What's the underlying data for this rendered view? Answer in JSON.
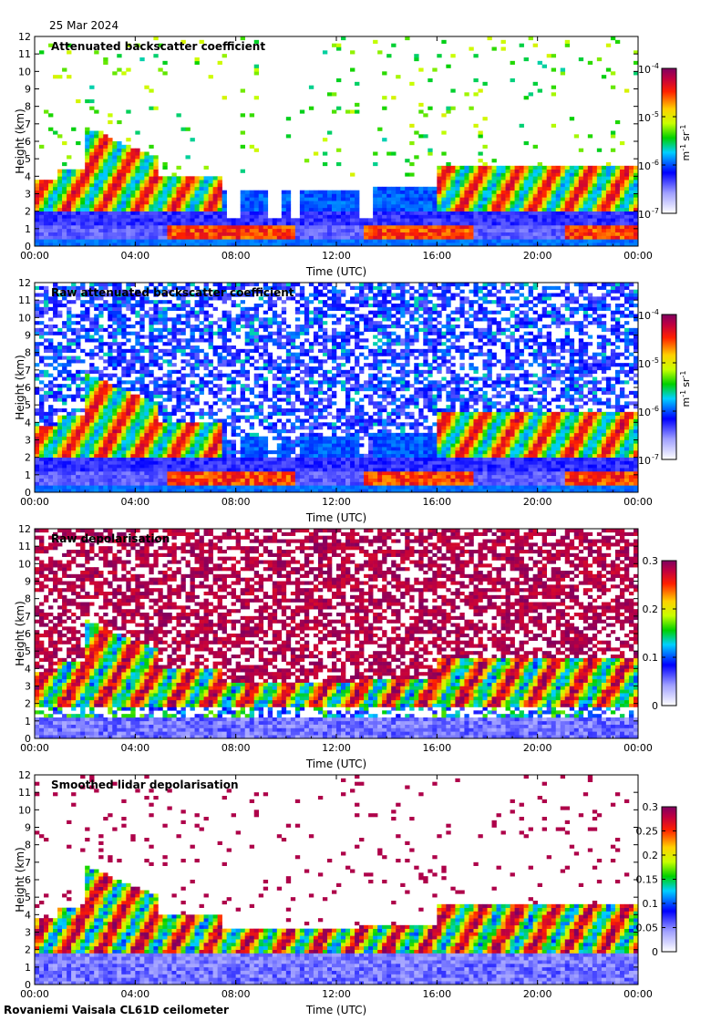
{
  "date": "25 Mar 2024",
  "footer": "Rovaniemi Vaisala CL61D ceilometer",
  "chart_data": [
    {
      "type": "heatmap",
      "title": "Attenuated backscatter coefficient",
      "xlabel": "Time (UTC)",
      "ylabel": "Height (km)",
      "x_ticks": [
        "00:00",
        "04:00",
        "08:00",
        "12:00",
        "16:00",
        "20:00",
        "00:00"
      ],
      "y_ticks": [
        "0",
        "1",
        "2",
        "3",
        "4",
        "5",
        "6",
        "7",
        "8",
        "9",
        "10",
        "11",
        "12"
      ],
      "ylim": [
        0,
        12
      ],
      "colorbar": {
        "scale": "log",
        "range": [
          1e-07,
          0.0001
        ],
        "ticks": [
          {
            "base": "10",
            "exp": "-4"
          },
          {
            "base": "10",
            "exp": "-5"
          },
          {
            "base": "10",
            "exp": "-6"
          },
          {
            "base": "10",
            "exp": "-7"
          }
        ],
        "unit": {
          "a": "m",
          "a_exp": "-1",
          "b": "sr",
          "b_exp": "-1"
        }
      }
    },
    {
      "type": "heatmap",
      "title": "Raw attenuated backscatter coefficient",
      "xlabel": "Time (UTC)",
      "ylabel": "Height (km)",
      "x_ticks": [
        "00:00",
        "04:00",
        "08:00",
        "12:00",
        "16:00",
        "20:00",
        "00:00"
      ],
      "y_ticks": [
        "0",
        "1",
        "2",
        "3",
        "4",
        "5",
        "6",
        "7",
        "8",
        "9",
        "10",
        "11",
        "12"
      ],
      "ylim": [
        0,
        12
      ],
      "colorbar": {
        "scale": "log",
        "range": [
          1e-07,
          0.0001
        ],
        "ticks": [
          {
            "base": "10",
            "exp": "-4"
          },
          {
            "base": "10",
            "exp": "-5"
          },
          {
            "base": "10",
            "exp": "-6"
          },
          {
            "base": "10",
            "exp": "-7"
          }
        ],
        "unit": {
          "a": "m",
          "a_exp": "-1",
          "b": "sr",
          "b_exp": "-1"
        }
      }
    },
    {
      "type": "heatmap",
      "title": "Raw depolarisation",
      "xlabel": "Time (UTC)",
      "ylabel": "Height (km)",
      "x_ticks": [
        "00:00",
        "04:00",
        "08:00",
        "12:00",
        "16:00",
        "20:00",
        "00:00"
      ],
      "y_ticks": [
        "0",
        "1",
        "2",
        "3",
        "4",
        "5",
        "6",
        "7",
        "8",
        "9",
        "10",
        "11",
        "12"
      ],
      "ylim": [
        0,
        12
      ],
      "colorbar": {
        "scale": "linear",
        "range": [
          0,
          0.3
        ],
        "ticks": [
          "0.3",
          "0.2",
          "0.1",
          "0"
        ]
      }
    },
    {
      "type": "heatmap",
      "title": "Smoothed lidar depolarisation",
      "xlabel": "Time (UTC)",
      "ylabel": "Height (km)",
      "x_ticks": [
        "00:00",
        "04:00",
        "08:00",
        "12:00",
        "16:00",
        "20:00",
        "00:00"
      ],
      "y_ticks": [
        "0",
        "1",
        "2",
        "3",
        "4",
        "5",
        "6",
        "7",
        "8",
        "9",
        "10",
        "11",
        "12"
      ],
      "ylim": [
        0,
        12
      ],
      "colorbar": {
        "scale": "linear",
        "range": [
          0,
          0.3
        ],
        "ticks": [
          "0.3",
          "0.25",
          "0.2",
          "0.15",
          "0.1",
          "0.05",
          "0"
        ]
      }
    }
  ]
}
